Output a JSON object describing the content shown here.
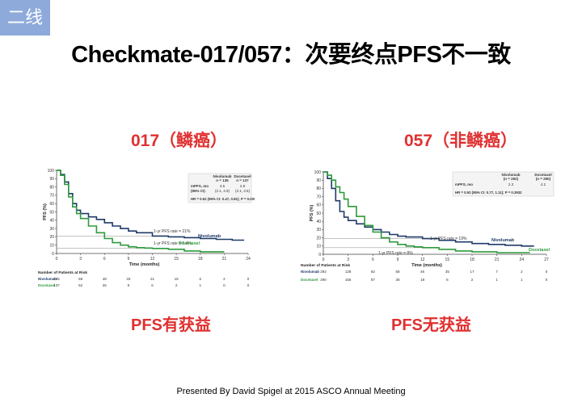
{
  "tag": "二线",
  "title": "Checkmate-017/057：次要终点PFS不一致",
  "footer": "Presented By David Spigel at 2015 ASCO Annual Meeting",
  "colors": {
    "nivolumab": "#1f3a68",
    "docetaxel": "#2e9a3c",
    "accent": "#e03030",
    "tag": "#8eaadb"
  },
  "panels": [
    {
      "subtitle": "017（鳞癌）",
      "verdict": "PFS有获益",
      "rate_nivo": "1-yr PFS rate = 21%",
      "rate_doce": "1-yr PFS rate = 6.4%",
      "table": {
        "headers": [
          "Nivolumab\nn = 135",
          "Docetaxel\nn = 137"
        ],
        "rows": [
          [
            "mPFS, mo",
            "3.5",
            "2.8"
          ],
          [
            "(95% CI)",
            "(2.1, 4.9)",
            "(2.1, 3.5)"
          ]
        ],
        "hr": "HR = 0.62 (95% CI: 0.47, 0.81); P = 0.0004"
      },
      "risk": {
        "title": "Number of Patients at Risk",
        "rows": [
          {
            "name": "Nivolumab",
            "values": [
              "135",
              "68",
              "48",
              "33",
              "21",
              "15",
              "6",
              "2",
              "0"
            ]
          },
          {
            "name": "Docetaxel",
            "values": [
              "137",
              "62",
              "26",
              "9",
              "6",
              "2",
              "1",
              "0",
              "0"
            ]
          }
        ]
      },
      "chart_data": {
        "type": "line",
        "xlabel": "Time (months)",
        "ylabel": "PFS (%)",
        "xlim": [
          0,
          24
        ],
        "ylim": [
          0,
          100
        ],
        "xticks": [
          0,
          3,
          6,
          9,
          12,
          15,
          18,
          21,
          24
        ],
        "yticks": [
          0,
          10,
          20,
          30,
          40,
          50,
          60,
          70,
          80,
          90,
          100
        ],
        "series": [
          {
            "name": "Nivolumab",
            "x": [
              0,
              0.5,
              1,
              1.5,
              2,
              2.5,
              3,
              4,
              5,
              6,
              7,
              8,
              9,
              10,
              12,
              14,
              16,
              18,
              20,
              22,
              23.5
            ],
            "y": [
              100,
              95,
              86,
              72,
              60,
              52,
              48,
              44,
              41,
              37,
              33,
              30,
              27,
              25,
              21,
              20,
              19,
              18,
              17,
              16,
              16
            ]
          },
          {
            "name": "Docetaxel",
            "x": [
              0,
              0.5,
              1,
              1.5,
              2,
              2.5,
              3,
              4,
              5,
              6,
              7,
              8,
              9,
              10,
              11,
              12,
              14,
              16,
              18,
              21
            ],
            "y": [
              100,
              94,
              83,
              68,
              56,
              48,
              42,
              33,
              25,
              18,
              13,
              10,
              8,
              7,
              6.5,
              6,
              5,
              3,
              2,
              2
            ]
          }
        ]
      }
    },
    {
      "subtitle": "057（非鳞癌）",
      "verdict": "PFS无获益",
      "rate_nivo": "1-yr PFS rate = 19%",
      "rate_doce": "1-yr PFS rate = 8%",
      "table": {
        "headers": [
          "Nivolumab\n(n = 292)",
          "Docetaxel\n(n = 290)"
        ],
        "rows": [
          [
            "mPFS, mo",
            "2.3",
            "4.2"
          ]
        ],
        "hr": "HR = 0.92 (95% CI: 0.77, 1.11); P = 0.3932"
      },
      "risk": {
        "title": "Number of Patients at Risk",
        "rows": [
          {
            "name": "Nivolumab",
            "values": [
              "292",
              "128",
              "82",
              "58",
              "46",
              "35",
              "17",
              "7",
              "2",
              "0"
            ]
          },
          {
            "name": "Docetaxel",
            "values": [
              "290",
              "156",
              "87",
              "38",
              "18",
              "6",
              "2",
              "1",
              "1",
              "0"
            ]
          }
        ]
      },
      "chart_data": {
        "type": "line",
        "xlabel": "Time (months)",
        "ylabel": "PFS (%)",
        "xlim": [
          0,
          27
        ],
        "ylim": [
          0,
          100
        ],
        "xticks": [
          0,
          3,
          6,
          9,
          12,
          15,
          18,
          21,
          24,
          27
        ],
        "yticks": [
          0,
          10,
          20,
          30,
          40,
          50,
          60,
          70,
          80,
          90,
          100
        ],
        "series": [
          {
            "name": "Nivolumab",
            "x": [
              0,
              0.5,
              1,
              1.5,
              2,
              2.5,
              3,
              4,
              5,
              6,
              7,
              8,
              9,
              10,
              12,
              14,
              16,
              18,
              20,
              22,
              24,
              25.5
            ],
            "y": [
              100,
              92,
              80,
              65,
              52,
              45,
              41,
              37,
              33,
              30,
              27,
              24,
              22,
              21,
              19,
              17,
              15,
              13,
              12,
              11,
              10,
              10
            ]
          },
          {
            "name": "Docetaxel",
            "x": [
              0,
              0.5,
              1,
              1.5,
              2,
              2.5,
              3,
              4,
              5,
              6,
              7,
              8,
              9,
              10,
              11,
              12,
              14,
              16,
              18,
              21,
              24,
              25
            ],
            "y": [
              100,
              96,
              90,
              82,
              75,
              67,
              58,
              46,
              35,
              27,
              20,
              15,
              12,
              10,
              9,
              8,
              6,
              4,
              3,
              2,
              2,
              2
            ]
          }
        ]
      }
    }
  ]
}
